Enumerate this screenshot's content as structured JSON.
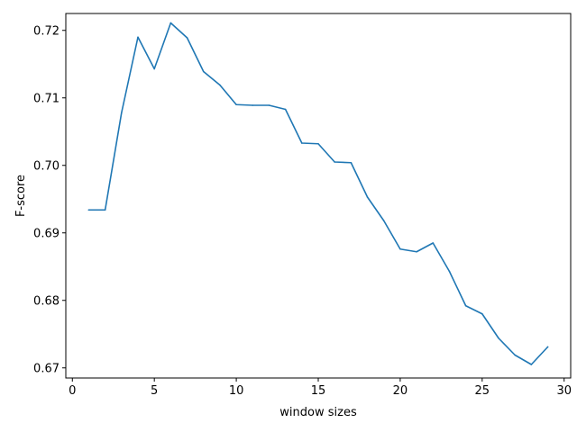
{
  "chart_data": {
    "type": "line",
    "title": "",
    "xlabel": "window sizes",
    "ylabel": "F-score",
    "xlim": [
      -0.4,
      30.4
    ],
    "ylim": [
      0.6685,
      0.7225
    ],
    "xticks": [
      0,
      5,
      10,
      15,
      20,
      25,
      30
    ],
    "xtick_labels": [
      "0",
      "5",
      "10",
      "15",
      "20",
      "25",
      "30"
    ],
    "yticks": [
      0.67,
      0.68,
      0.69,
      0.7,
      0.71,
      0.72
    ],
    "ytick_labels": [
      "0.67",
      "0.68",
      "0.69",
      "0.70",
      "0.71",
      "0.72"
    ],
    "grid": false,
    "legend": "none",
    "series": [
      {
        "color": "#1f77b4",
        "x": [
          1,
          2,
          3,
          4,
          5,
          6,
          7,
          8,
          9,
          10,
          11,
          12,
          13,
          14,
          15,
          16,
          17,
          18,
          19,
          20,
          21,
          22,
          23,
          24,
          25,
          26,
          27,
          28,
          29
        ],
        "y": [
          0.6934,
          0.6934,
          0.7078,
          0.719,
          0.7143,
          0.7211,
          0.7189,
          0.7139,
          0.7119,
          0.709,
          0.7089,
          0.7089,
          0.7083,
          0.7033,
          0.7032,
          0.7005,
          0.7004,
          0.6953,
          0.6918,
          0.6876,
          0.6872,
          0.6885,
          0.6843,
          0.6792,
          0.678,
          0.6744,
          0.6719,
          0.6705,
          0.6731
        ]
      }
    ]
  }
}
